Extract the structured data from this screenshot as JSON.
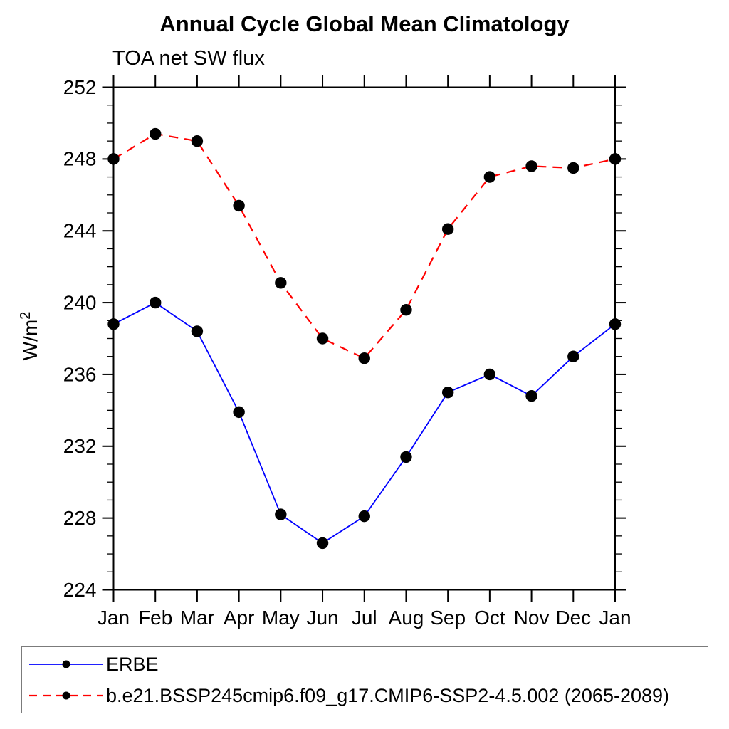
{
  "page": {
    "background": "#ffffff"
  },
  "chart_data": {
    "type": "line",
    "title": "Annual Cycle Global Mean Climatology",
    "subtitle": "TOA net SW flux",
    "ylabel": "W/m²",
    "categories": [
      "Jan",
      "Feb",
      "Mar",
      "Apr",
      "May",
      "Jun",
      "Jul",
      "Aug",
      "Sep",
      "Oct",
      "Nov",
      "Dec",
      "Jan"
    ],
    "series": [
      {
        "name": "ERBE",
        "color": "#0000ff",
        "line_style": "solid",
        "marker": "dot",
        "marker_color": "#000000",
        "values": [
          238.8,
          240.0,
          238.4,
          233.9,
          228.2,
          226.6,
          228.1,
          231.4,
          235.0,
          236.0,
          234.8,
          237.0,
          238.8
        ]
      },
      {
        "name": "b.e21.BSSP245cmip6.f09_g17.CMIP6-SSP2-4.5.002 (2065-2089)",
        "color": "#ff0000",
        "line_style": "dashed",
        "marker": "dot",
        "marker_color": "#000000",
        "values": [
          248.0,
          249.4,
          249.0,
          245.4,
          241.1,
          238.0,
          236.9,
          239.6,
          244.1,
          247.0,
          247.6,
          247.5,
          248.0
        ]
      }
    ],
    "ylim": [
      224,
      252
    ],
    "yticks": [
      224,
      228,
      232,
      236,
      240,
      244,
      248,
      252
    ],
    "y_minor_step": 1,
    "grid": false,
    "axis_color": "#000000",
    "legend_position": "bottom"
  }
}
